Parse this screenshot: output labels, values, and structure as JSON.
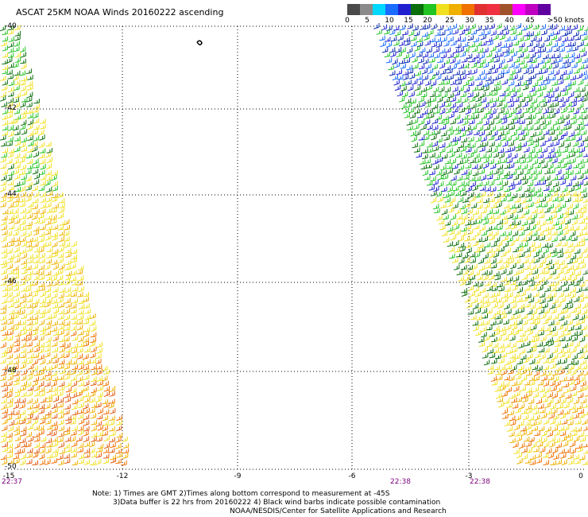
{
  "title": "ASCAT 25KM NOAA Winds 20160222 ascending",
  "color_scale": {
    "segments": [
      "#4a4a4a",
      "#8a8a8a",
      "#00d8ff",
      "#1a6bff",
      "#2020d0",
      "#0a6e0a",
      "#22c422",
      "#f0e020",
      "#f0b000",
      "#f07000",
      "#e03030",
      "#f03040",
      "#a0522d",
      "#ff00ff",
      "#c000c0",
      "#6000a0"
    ],
    "labels": [
      "0",
      "5",
      "10",
      "15",
      "20",
      "25",
      "30",
      "35",
      "40",
      "45",
      ">50 knots"
    ]
  },
  "map": {
    "lat_labels": [
      "-40",
      "-42",
      "-44",
      "-46",
      "-48",
      "-50"
    ],
    "lon_labels": [
      "-15",
      "-12",
      "-9",
      "-6",
      "-3",
      "0"
    ],
    "time_labels": [
      "22:37",
      "22:38",
      "22:38"
    ],
    "lat_range": [
      -50,
      -40
    ],
    "lon_range": [
      -15,
      0
    ],
    "grid": "dotted"
  },
  "notes": {
    "line1": "Note: 1) Times are GMT 2)Times along bottom correspond to measurement at -45S",
    "line2": "3)Data buffer is 22 hrs from 20160222 4) Black wind barbs indicate possible contamination",
    "line3": "NOAA/NESDIS/Center for Satellite Applications and Research"
  }
}
